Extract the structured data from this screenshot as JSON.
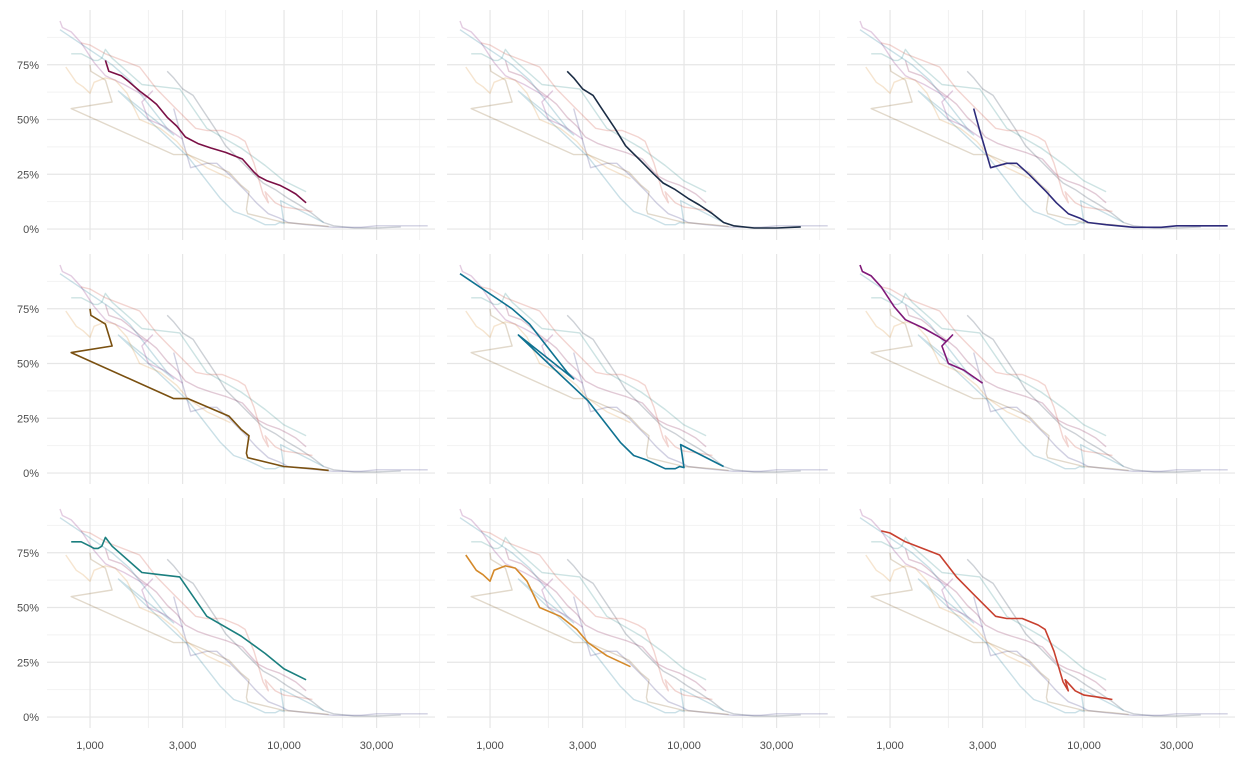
{
  "chart_data": {
    "type": "line",
    "layout": "small-multiples",
    "x_scale": "log10",
    "x_ticks": [
      {
        "value": 1000,
        "label": "1,000"
      },
      {
        "value": 3000,
        "label": "3,000"
      },
      {
        "value": 10000,
        "label": "10,000"
      },
      {
        "value": 30000,
        "label": "30,000"
      }
    ],
    "y_ticks": [
      {
        "value": 0,
        "label": "0%"
      },
      {
        "value": 0.25,
        "label": "25%"
      },
      {
        "value": 0.5,
        "label": "50%"
      },
      {
        "value": 0.75,
        "label": "75%"
      }
    ],
    "xlim": [
      600,
      60000
    ],
    "ylim": [
      -0.05,
      1.0
    ],
    "grid": true,
    "legend": "none",
    "series": [
      {
        "color": "#7a0f45",
        "points": [
          [
            1200,
            0.77
          ],
          [
            1250,
            0.72
          ],
          [
            1450,
            0.7
          ],
          [
            1550,
            0.68
          ],
          [
            1800,
            0.63
          ],
          [
            2000,
            0.6
          ],
          [
            2200,
            0.57
          ],
          [
            2500,
            0.51
          ],
          [
            2800,
            0.47
          ],
          [
            3100,
            0.42
          ],
          [
            3600,
            0.39
          ],
          [
            4200,
            0.37
          ],
          [
            5000,
            0.35
          ],
          [
            6100,
            0.32
          ],
          [
            7000,
            0.26
          ],
          [
            7400,
            0.24
          ],
          [
            8200,
            0.22
          ],
          [
            9500,
            0.2
          ],
          [
            10500,
            0.18
          ],
          [
            11500,
            0.16
          ],
          [
            13000,
            0.12
          ]
        ]
      },
      {
        "color": "#1b2d45",
        "points": [
          [
            2500,
            0.72
          ],
          [
            2700,
            0.69
          ],
          [
            3000,
            0.64
          ],
          [
            3400,
            0.61
          ],
          [
            3700,
            0.56
          ],
          [
            4400,
            0.46
          ],
          [
            5000,
            0.38
          ],
          [
            6000,
            0.31
          ],
          [
            7000,
            0.25
          ],
          [
            7800,
            0.21
          ],
          [
            9000,
            0.18
          ],
          [
            10500,
            0.14
          ],
          [
            12000,
            0.11
          ],
          [
            14000,
            0.07
          ],
          [
            16000,
            0.03
          ],
          [
            18000,
            0.015
          ],
          [
            23000,
            0.005
          ],
          [
            30000,
            0.005
          ],
          [
            40000,
            0.01
          ]
        ]
      },
      {
        "color": "#2e2b7a",
        "points": [
          [
            2700,
            0.55
          ],
          [
            2900,
            0.45
          ],
          [
            3300,
            0.28
          ],
          [
            4000,
            0.3
          ],
          [
            4500,
            0.3
          ],
          [
            5200,
            0.25
          ],
          [
            6400,
            0.17
          ],
          [
            7200,
            0.12
          ],
          [
            8300,
            0.07
          ],
          [
            9500,
            0.05
          ],
          [
            10500,
            0.03
          ],
          [
            13000,
            0.02
          ],
          [
            18000,
            0.008
          ],
          [
            25000,
            0.008
          ],
          [
            30000,
            0.015
          ],
          [
            55000,
            0.015
          ]
        ]
      },
      {
        "color": "#7a5010",
        "points": [
          [
            1000,
            0.75
          ],
          [
            1010,
            0.72
          ],
          [
            1200,
            0.68
          ],
          [
            1300,
            0.58
          ],
          [
            800,
            0.55
          ],
          [
            2700,
            0.34
          ],
          [
            3200,
            0.34
          ],
          [
            5200,
            0.26
          ],
          [
            6000,
            0.2
          ],
          [
            6600,
            0.17
          ],
          [
            6400,
            0.09
          ],
          [
            6500,
            0.07
          ],
          [
            10000,
            0.03
          ],
          [
            14000,
            0.02
          ],
          [
            17000,
            0.012
          ]
        ]
      },
      {
        "color": "#0f7291",
        "points": [
          [
            700,
            0.91
          ],
          [
            1300,
            0.75
          ],
          [
            1600,
            0.68
          ],
          [
            2000,
            0.57
          ],
          [
            2500,
            0.46
          ],
          [
            2700,
            0.43
          ],
          [
            1400,
            0.63
          ],
          [
            2000,
            0.5
          ],
          [
            3200,
            0.33
          ],
          [
            4700,
            0.14
          ],
          [
            5500,
            0.08
          ],
          [
            6400,
            0.06
          ],
          [
            8000,
            0.02
          ],
          [
            9000,
            0.02
          ],
          [
            9500,
            0.03
          ],
          [
            10000,
            0.025
          ],
          [
            9600,
            0.13
          ],
          [
            16000,
            0.03
          ]
        ]
      },
      {
        "color": "#7f1878",
        "points": [
          [
            700,
            0.95
          ],
          [
            720,
            0.92
          ],
          [
            800,
            0.9
          ],
          [
            900,
            0.85
          ],
          [
            1050,
            0.76
          ],
          [
            1200,
            0.7
          ],
          [
            1500,
            0.66
          ],
          [
            1800,
            0.62
          ],
          [
            1950,
            0.6
          ],
          [
            2100,
            0.63
          ],
          [
            1850,
            0.58
          ],
          [
            2000,
            0.5
          ],
          [
            2400,
            0.47
          ],
          [
            3000,
            0.41
          ]
        ]
      },
      {
        "color": "#1b7f7f",
        "points": [
          [
            800,
            0.8
          ],
          [
            900,
            0.8
          ],
          [
            1000,
            0.78
          ],
          [
            1050,
            0.77
          ],
          [
            1100,
            0.77
          ],
          [
            1150,
            0.78
          ],
          [
            1200,
            0.82
          ],
          [
            1300,
            0.78
          ],
          [
            1850,
            0.66
          ],
          [
            2300,
            0.65
          ],
          [
            2900,
            0.64
          ],
          [
            4000,
            0.46
          ],
          [
            6000,
            0.37
          ],
          [
            8000,
            0.29
          ],
          [
            10000,
            0.22
          ],
          [
            13000,
            0.17
          ]
        ]
      },
      {
        "color": "#d4892a",
        "points": [
          [
            750,
            0.74
          ],
          [
            850,
            0.67
          ],
          [
            920,
            0.65
          ],
          [
            1000,
            0.62
          ],
          [
            1050,
            0.67
          ],
          [
            1200,
            0.69
          ],
          [
            1350,
            0.68
          ],
          [
            1550,
            0.62
          ],
          [
            1800,
            0.5
          ],
          [
            2300,
            0.46
          ],
          [
            2800,
            0.4
          ],
          [
            3200,
            0.34
          ],
          [
            4000,
            0.28
          ],
          [
            5300,
            0.23
          ]
        ]
      },
      {
        "color": "#c8402f",
        "points": [
          [
            900,
            0.85
          ],
          [
            1000,
            0.84
          ],
          [
            1200,
            0.8
          ],
          [
            1800,
            0.74
          ],
          [
            2200,
            0.64
          ],
          [
            2700,
            0.56
          ],
          [
            3500,
            0.46
          ],
          [
            4000,
            0.45
          ],
          [
            4800,
            0.45
          ],
          [
            5800,
            0.42
          ],
          [
            6300,
            0.4
          ],
          [
            7000,
            0.3
          ],
          [
            7800,
            0.16
          ],
          [
            8300,
            0.12
          ],
          [
            8000,
            0.17
          ],
          [
            9000,
            0.12
          ],
          [
            10000,
            0.1
          ],
          [
            12000,
            0.09
          ],
          [
            14000,
            0.08
          ]
        ]
      }
    ]
  }
}
